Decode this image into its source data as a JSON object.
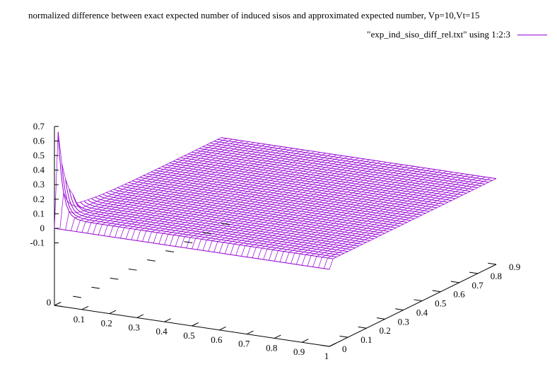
{
  "chart_data": {
    "type": "surface",
    "title": "normalized difference between exact expected number of induced sisos and approximated expected number, Vp=10,Vt=15",
    "legend": {
      "label": "\"exp_ind_siso_diff_rel.txt\" using 1:2:3",
      "color": "#9400d3",
      "placement": "top-right"
    },
    "x_axis": {
      "range": [
        0,
        1
      ],
      "ticks": [
        0,
        0.1,
        0.2,
        0.3,
        0.4,
        0.5,
        0.6,
        0.7,
        0.8,
        0.9,
        1
      ],
      "tick_labels": [
        "0",
        "0.1",
        "0.2",
        "0.3",
        "0.4",
        "0.5",
        "0.6",
        "0.7",
        "0.8",
        "0.9",
        "1"
      ]
    },
    "y_axis": {
      "range": [
        0,
        0.9
      ],
      "ticks": [
        0,
        0.1,
        0.2,
        0.3,
        0.4,
        0.5,
        0.6,
        0.7,
        0.8,
        0.9
      ],
      "tick_labels": [
        "0",
        "0.1",
        "0.2",
        "0.3",
        "0.4",
        "0.5",
        "0.6",
        "0.7",
        "0.8",
        "0.9"
      ]
    },
    "z_axis": {
      "range": [
        -0.1,
        0.7
      ],
      "ticks": [
        -0.1,
        0,
        0.1,
        0.2,
        0.3,
        0.4,
        0.5,
        0.6,
        0.7
      ],
      "tick_labels": [
        "-0.1",
        "0",
        "0.1",
        "0.2",
        "0.3",
        "0.4",
        "0.5",
        "0.6",
        "0.7"
      ]
    },
    "surface": {
      "x_step": 0.02,
      "y_step": 0.02,
      "plateau_z": 0.06,
      "edge_z_by_y": [
        {
          "y": 0,
          "z": 0
        },
        {
          "y": 0.02,
          "z": 0.65
        },
        {
          "y": 0.04,
          "z": 0.42
        },
        {
          "y": 0.06,
          "z": 0.3
        },
        {
          "y": 0.08,
          "z": 0.22
        },
        {
          "y": 0.1,
          "z": 0.17
        }
      ]
    }
  }
}
